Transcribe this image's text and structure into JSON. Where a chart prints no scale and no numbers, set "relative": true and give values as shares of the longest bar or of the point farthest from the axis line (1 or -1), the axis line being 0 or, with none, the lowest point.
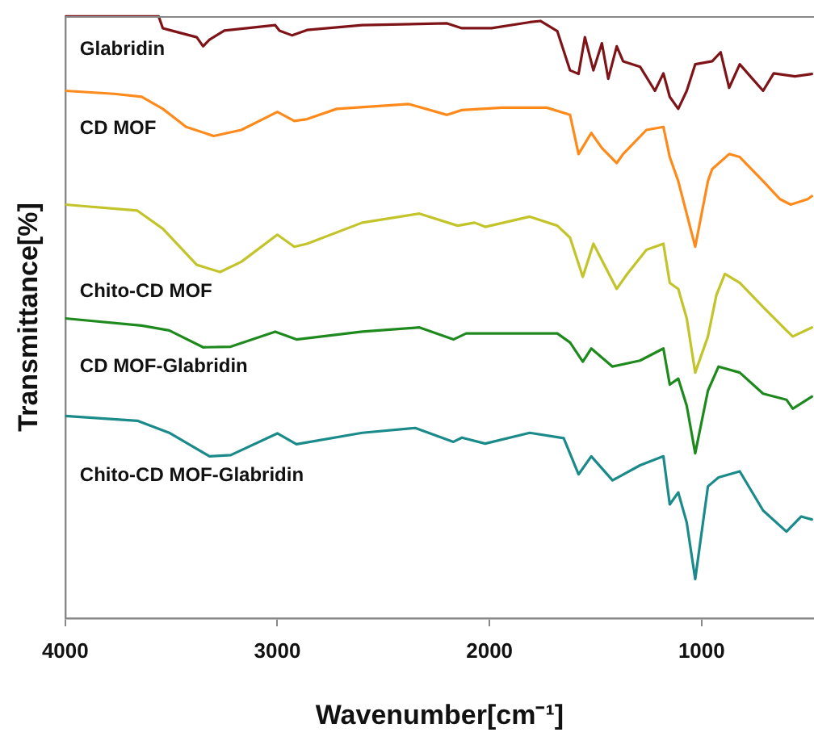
{
  "chart_data": {
    "type": "line",
    "relative": true,
    "xlabel": "Wavenumber[cm⁻¹]",
    "ylabel": "Transmittance[%]",
    "xlim": [
      4000,
      470
    ],
    "xticks": [
      4000,
      3000,
      2000,
      1000
    ],
    "grid": false,
    "legend": false,
    "marker": "none",
    "line_style": "solid",
    "series": [
      {
        "name": "Glabridin",
        "color": "#7f1418",
        "x": [
          4000,
          3560,
          3540,
          3510,
          3380,
          3350,
          3320,
          3250,
          3010,
          2990,
          2930,
          2860,
          2600,
          2200,
          2130,
          1990,
          1810,
          1760,
          1680,
          1620,
          1580,
          1550,
          1510,
          1470,
          1440,
          1400,
          1370,
          1290,
          1220,
          1180,
          1150,
          1110,
          1070,
          1030,
          950,
          910,
          870,
          820,
          760,
          710,
          660,
          560,
          480
        ],
        "values": [
          1.0,
          1.0,
          0.98,
          0.977,
          0.965,
          0.95,
          0.961,
          0.976,
          0.985,
          0.976,
          0.968,
          0.977,
          0.985,
          0.988,
          0.98,
          0.98,
          0.99,
          0.992,
          0.975,
          0.91,
          0.904,
          0.965,
          0.91,
          0.955,
          0.896,
          0.95,
          0.925,
          0.916,
          0.876,
          0.905,
          0.866,
          0.846,
          0.876,
          0.92,
          0.925,
          0.94,
          0.881,
          0.92,
          0.896,
          0.876,
          0.905,
          0.9,
          0.904
        ]
      },
      {
        "name": "CD MOF",
        "color": "#ff8a1c",
        "x": [
          4000,
          3770,
          3640,
          3540,
          3430,
          3300,
          3170,
          3000,
          2920,
          2860,
          2720,
          2380,
          2200,
          2130,
          1940,
          1730,
          1620,
          1580,
          1520,
          1470,
          1400,
          1370,
          1260,
          1180,
          1150,
          1110,
          1030,
          970,
          950,
          870,
          820,
          710,
          630,
          580,
          500,
          480
        ],
        "values": [
          0.876,
          0.871,
          0.866,
          0.846,
          0.816,
          0.801,
          0.811,
          0.841,
          0.826,
          0.829,
          0.846,
          0.854,
          0.836,
          0.844,
          0.848,
          0.848,
          0.836,
          0.771,
          0.806,
          0.781,
          0.756,
          0.771,
          0.811,
          0.816,
          0.766,
          0.726,
          0.617,
          0.726,
          0.746,
          0.771,
          0.766,
          0.726,
          0.696,
          0.687,
          0.696,
          0.701
        ]
      },
      {
        "name": "Chito-CD MOF",
        "color": "#c3c42a",
        "x": [
          4000,
          3660,
          3540,
          3380,
          3270,
          3170,
          3000,
          2920,
          2860,
          2600,
          2330,
          2150,
          2070,
          2020,
          1810,
          1680,
          1620,
          1560,
          1510,
          1400,
          1350,
          1260,
          1180,
          1150,
          1110,
          1070,
          1030,
          970,
          930,
          890,
          820,
          710,
          600,
          570,
          480
        ],
        "values": [
          0.687,
          0.677,
          0.647,
          0.587,
          0.575,
          0.592,
          0.637,
          0.617,
          0.622,
          0.657,
          0.672,
          0.652,
          0.657,
          0.65,
          0.667,
          0.652,
          0.632,
          0.567,
          0.622,
          0.547,
          0.572,
          0.612,
          0.622,
          0.557,
          0.547,
          0.498,
          0.408,
          0.468,
          0.537,
          0.572,
          0.557,
          0.517,
          0.478,
          0.468,
          0.483
        ]
      },
      {
        "name": "CD MOF-Glabridin",
        "color": "#1e8a1e",
        "x": [
          4000,
          3640,
          3510,
          3350,
          3220,
          3010,
          2910,
          2600,
          2330,
          2170,
          2110,
          1940,
          1680,
          1620,
          1560,
          1520,
          1420,
          1290,
          1180,
          1150,
          1110,
          1070,
          1030,
          970,
          920,
          820,
          710,
          600,
          570,
          480
        ],
        "values": [
          0.498,
          0.486,
          0.478,
          0.45,
          0.451,
          0.476,
          0.463,
          0.476,
          0.483,
          0.463,
          0.473,
          0.473,
          0.473,
          0.458,
          0.426,
          0.448,
          0.418,
          0.428,
          0.448,
          0.388,
          0.398,
          0.353,
          0.274,
          0.378,
          0.418,
          0.408,
          0.373,
          0.363,
          0.348,
          0.368
        ]
      },
      {
        "name": "Chito-CD MOF-Glabridin",
        "color": "#1a8a8a",
        "x": [
          4000,
          3660,
          3510,
          3320,
          3220,
          3000,
          2910,
          2600,
          2350,
          2170,
          2130,
          2020,
          1810,
          1650,
          1580,
          1520,
          1420,
          1290,
          1180,
          1150,
          1110,
          1070,
          1030,
          970,
          920,
          820,
          710,
          600,
          530,
          480
        ],
        "values": [
          0.336,
          0.328,
          0.308,
          0.269,
          0.271,
          0.307,
          0.289,
          0.308,
          0.316,
          0.293,
          0.3,
          0.29,
          0.308,
          0.299,
          0.239,
          0.269,
          0.229,
          0.254,
          0.269,
          0.189,
          0.209,
          0.159,
          0.065,
          0.219,
          0.234,
          0.244,
          0.179,
          0.144,
          0.169,
          0.164
        ]
      }
    ]
  }
}
